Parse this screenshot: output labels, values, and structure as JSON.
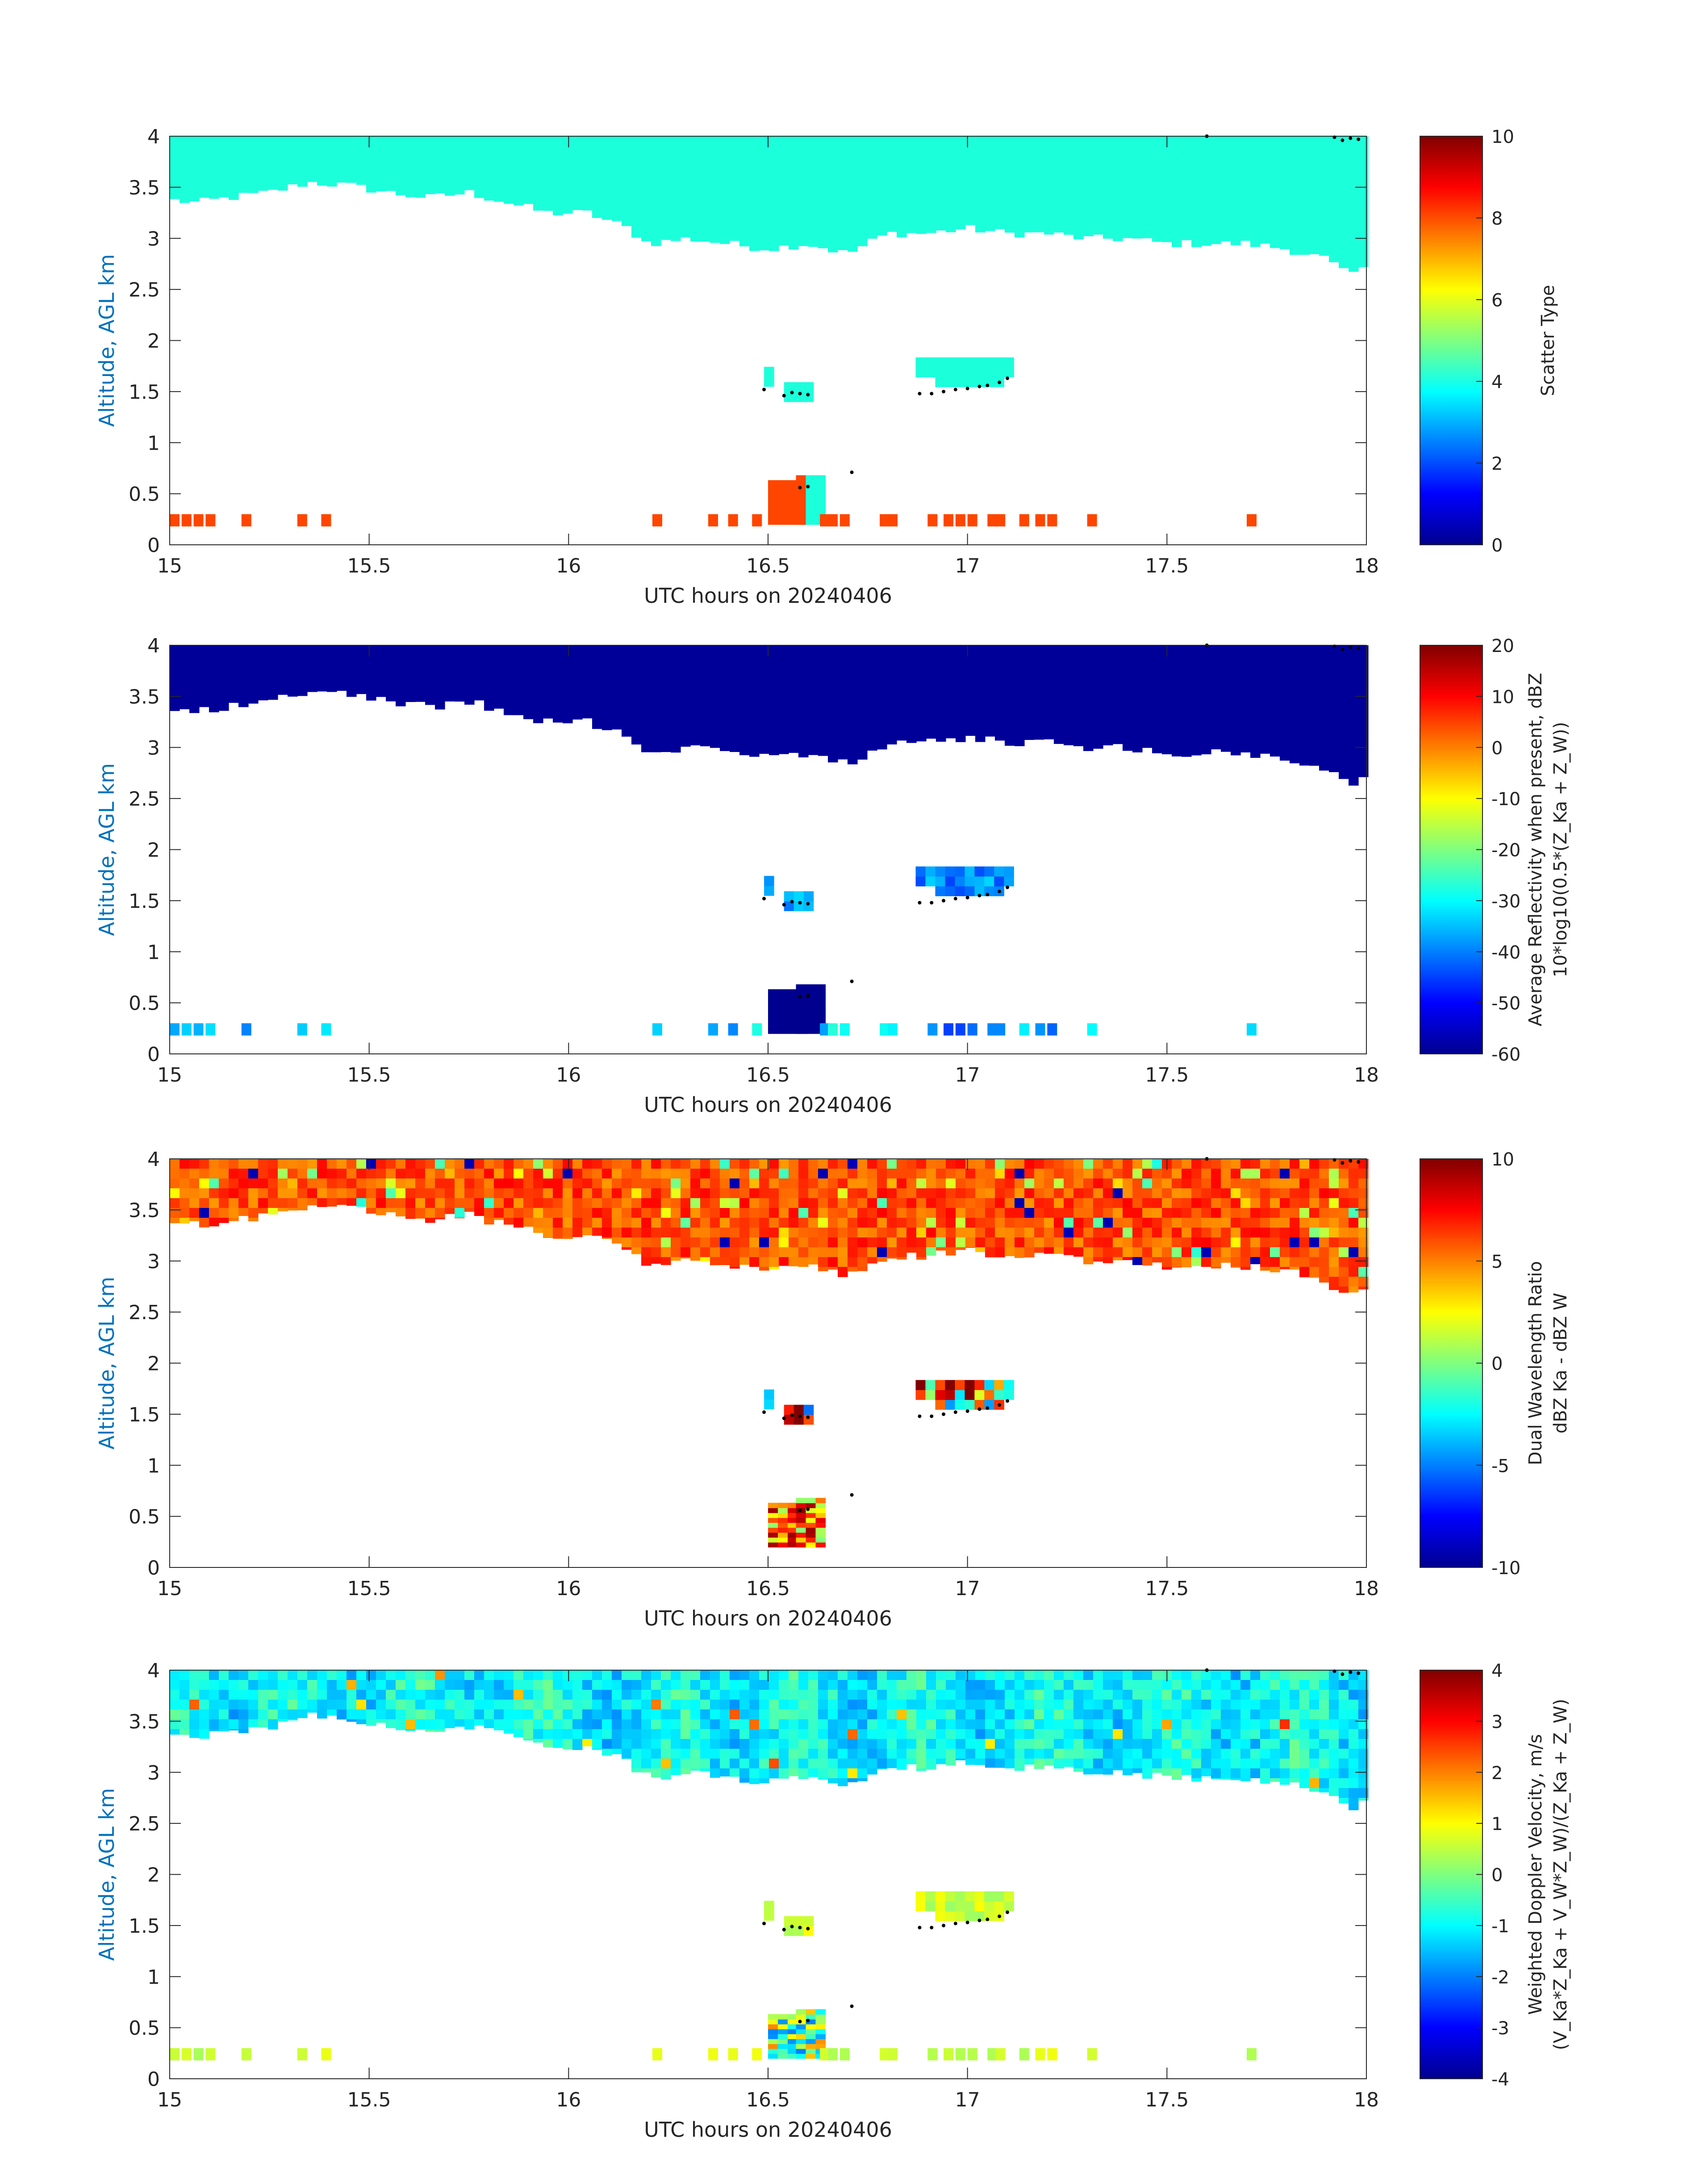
{
  "figure": {
    "date_label": "20240406"
  },
  "colors": {
    "axis_label": "#0072BD",
    "frame": "#262626",
    "cloud_cyan": "#1CFFDB",
    "clutter_orange": "#FF4500",
    "dot": "#000000"
  },
  "chart_data": [
    {
      "type": "heatmap",
      "name": "scatter-type",
      "xlabel": "UTC hours on 20240406",
      "ylabel": "Altitude, AGL km",
      "xlim": [
        15,
        18
      ],
      "ylim": [
        0,
        4
      ],
      "xticks": [
        "15",
        "15.5",
        "16",
        "16.5",
        "17",
        "17.5",
        "18"
      ],
      "yticks": [
        "0",
        "0.5",
        "1",
        "1.5",
        "2",
        "2.5",
        "3",
        "3.5",
        "4"
      ],
      "colorbar": {
        "label_lines": [
          "Scatter Type"
        ],
        "range": [
          0,
          10
        ],
        "ticks": [
          "0",
          "2",
          "4",
          "6",
          "8",
          "10"
        ]
      }
    },
    {
      "type": "heatmap",
      "name": "average-reflectivity",
      "xlabel": "UTC hours on 20240406",
      "ylabel": "Altitude, AGL km",
      "xlim": [
        15,
        18
      ],
      "ylim": [
        0,
        4
      ],
      "xticks": [
        "15",
        "15.5",
        "16",
        "16.5",
        "17",
        "17.5",
        "18"
      ],
      "yticks": [
        "0",
        "0.5",
        "1",
        "1.5",
        "2",
        "2.5",
        "3",
        "3.5",
        "4"
      ],
      "colorbar": {
        "label_lines": [
          "Average Reflectivity when present, dBZ",
          "10*log10(0.5*(Z_Ka + Z_W))"
        ],
        "range": [
          -60,
          20
        ],
        "ticks": [
          "-60",
          "-50",
          "-40",
          "-30",
          "-20",
          "-10",
          "0",
          "10",
          "20"
        ]
      }
    },
    {
      "type": "heatmap",
      "name": "dual-wavelength-ratio",
      "xlabel": "UTC hours on 20240406",
      "ylabel": "Altitude, AGL km",
      "xlim": [
        15,
        18
      ],
      "ylim": [
        0,
        4
      ],
      "xticks": [
        "15",
        "15.5",
        "16",
        "16.5",
        "17",
        "17.5",
        "18"
      ],
      "yticks": [
        "0",
        "0.5",
        "1",
        "1.5",
        "2",
        "2.5",
        "3",
        "3.5",
        "4"
      ],
      "colorbar": {
        "label_lines": [
          "Dual Wavelength Ratio",
          "dBZ Ka - dBZ W"
        ],
        "range": [
          -10,
          10
        ],
        "ticks": [
          "-10",
          "-5",
          "0",
          "5",
          "10"
        ]
      }
    },
    {
      "type": "heatmap",
      "name": "weighted-doppler-velocity",
      "xlabel": "UTC hours on 20240406",
      "ylabel": "Altitude, AGL km",
      "xlim": [
        15,
        18
      ],
      "ylim": [
        0,
        4
      ],
      "xticks": [
        "15",
        "15.5",
        "16",
        "16.5",
        "17",
        "17.5",
        "18"
      ],
      "yticks": [
        "0",
        "0.5",
        "1",
        "1.5",
        "2",
        "2.5",
        "3",
        "3.5",
        "4"
      ],
      "colorbar": {
        "label_lines": [
          "Weighted Doppler Velocity, m/s",
          "(V_Ka*Z_Ka + V_W*Z_W)/(Z_Ka + Z_W)"
        ],
        "range": [
          -4,
          4
        ],
        "ticks": [
          "-4",
          "-3",
          "-2",
          "-1",
          "0",
          "1",
          "2",
          "3",
          "4"
        ]
      }
    }
  ],
  "cloud_data": {
    "upper_cloud_base_km": [
      [
        15.0,
        3.38
      ],
      [
        15.07,
        3.35
      ],
      [
        15.15,
        3.4
      ],
      [
        15.25,
        3.45
      ],
      [
        15.35,
        3.55
      ],
      [
        15.45,
        3.52
      ],
      [
        15.55,
        3.45
      ],
      [
        15.65,
        3.4
      ],
      [
        15.75,
        3.45
      ],
      [
        15.85,
        3.35
      ],
      [
        15.95,
        3.25
      ],
      [
        16.05,
        3.25
      ],
      [
        16.15,
        3.1
      ],
      [
        16.2,
        2.95
      ],
      [
        16.3,
        3.0
      ],
      [
        16.4,
        2.95
      ],
      [
        16.5,
        2.9
      ],
      [
        16.6,
        2.95
      ],
      [
        16.7,
        2.85
      ],
      [
        16.8,
        3.05
      ],
      [
        16.9,
        3.05
      ],
      [
        17.0,
        3.1
      ],
      [
        17.1,
        3.05
      ],
      [
        17.2,
        3.05
      ],
      [
        17.3,
        3.0
      ],
      [
        17.4,
        3.0
      ],
      [
        17.5,
        2.95
      ],
      [
        17.6,
        2.95
      ],
      [
        17.7,
        2.95
      ],
      [
        17.8,
        2.9
      ],
      [
        17.9,
        2.8
      ],
      [
        17.95,
        2.65
      ],
      [
        18.0,
        2.7
      ]
    ],
    "mid_cloud_patches": [
      {
        "x0": 16.87,
        "x1": 17.11,
        "y0": 1.45,
        "y1": 1.8
      },
      {
        "x0": 16.54,
        "x1": 16.6,
        "y0": 1.4,
        "y1": 1.55
      },
      {
        "x0": 16.49,
        "x1": 16.51,
        "y0": 1.55,
        "y1": 1.67
      }
    ],
    "low_echo_patches": [
      {
        "x0": 16.5,
        "x1": 16.58,
        "y0": 0.2,
        "y1": 0.6
      },
      {
        "x0": 16.57,
        "x1": 16.62,
        "y0": 0.2,
        "y1": 0.66
      }
    ],
    "dot_trail": [
      [
        16.49,
        1.52
      ],
      [
        16.54,
        1.46
      ],
      [
        16.56,
        1.49
      ],
      [
        16.58,
        1.48
      ],
      [
        16.6,
        1.47
      ],
      [
        16.88,
        1.48
      ],
      [
        16.91,
        1.48
      ],
      [
        16.94,
        1.5
      ],
      [
        16.97,
        1.52
      ],
      [
        17.0,
        1.53
      ],
      [
        17.03,
        1.55
      ],
      [
        17.05,
        1.56
      ],
      [
        17.08,
        1.59
      ],
      [
        17.1,
        1.63
      ],
      [
        16.58,
        0.56
      ],
      [
        16.6,
        0.57
      ],
      [
        16.71,
        0.71
      ],
      [
        17.6,
        4.0
      ],
      [
        17.92,
        3.99
      ],
      [
        17.94,
        3.96
      ],
      [
        17.96,
        3.98
      ],
      [
        17.98,
        3.97
      ]
    ],
    "ground_clutter_times": [
      15.0,
      15.03,
      15.06,
      15.09,
      15.18,
      15.32,
      15.38,
      16.21,
      16.35,
      16.4,
      16.46,
      16.63,
      16.65,
      16.68,
      16.78,
      16.8,
      16.9,
      16.94,
      16.97,
      17.0,
      17.05,
      17.07,
      17.13,
      17.17,
      17.2,
      17.3,
      17.7
    ]
  }
}
